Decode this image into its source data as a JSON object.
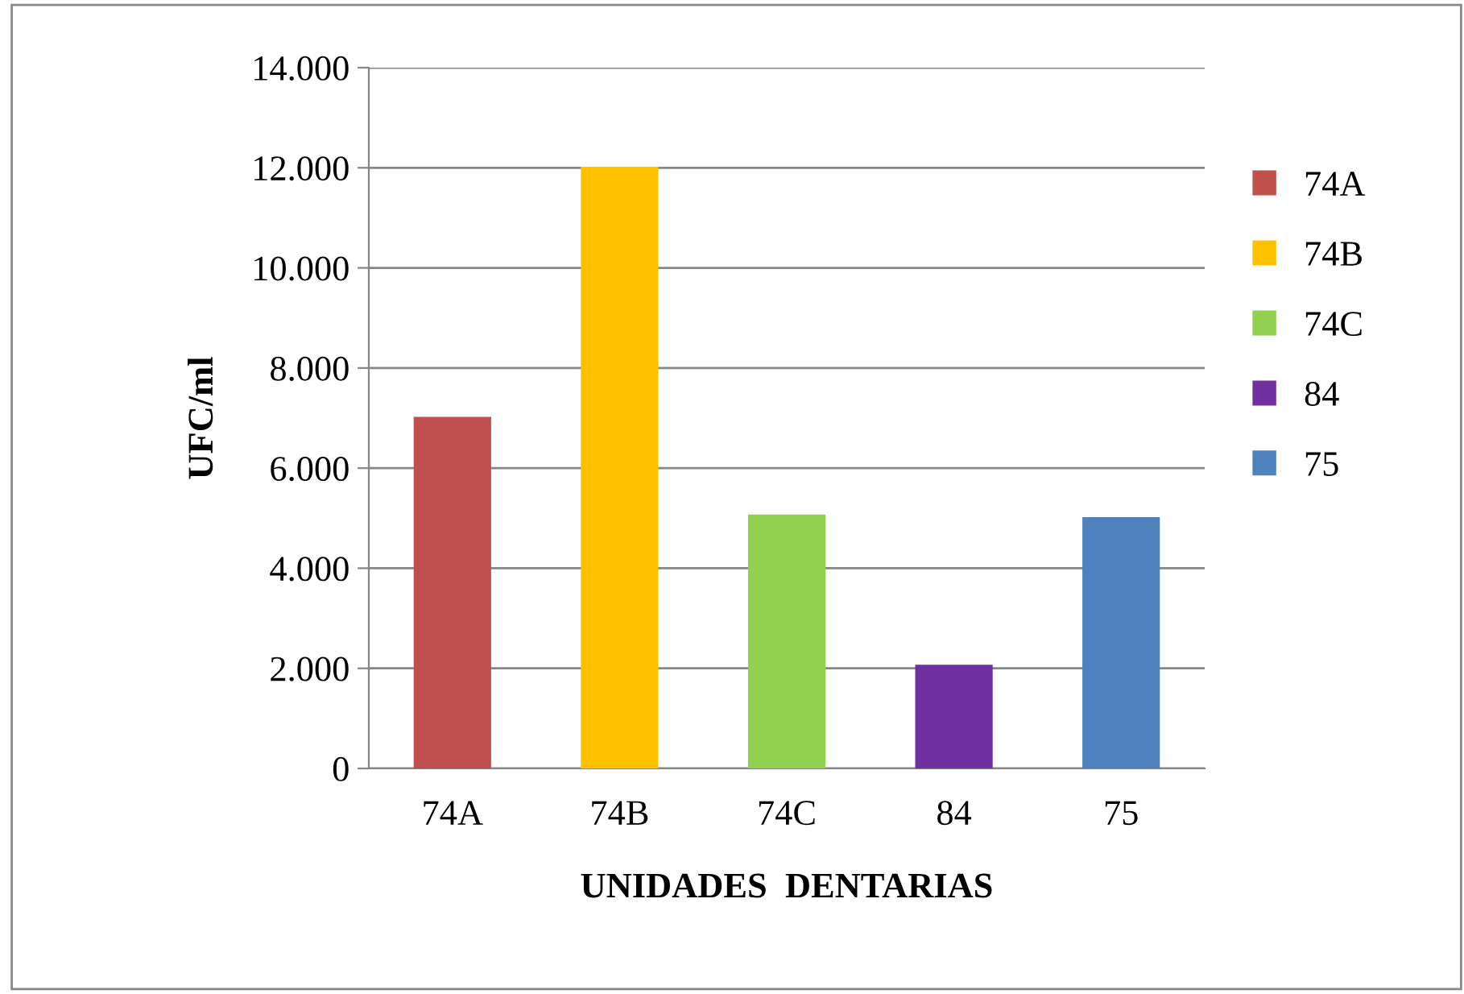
{
  "chart_data": {
    "type": "bar",
    "xlabel": "UNIDADES  DENTARIAS",
    "ylabel": "UFC/ml",
    "categories": [
      "74A",
      "74B",
      "74C",
      "84",
      "75"
    ],
    "series": [
      {
        "name": "74A",
        "color": "#c0504d",
        "values": [
          7000,
          null,
          null,
          null,
          null
        ]
      },
      {
        "name": "74B",
        "color": "#ffc000",
        "values": [
          null,
          12000,
          null,
          null,
          null
        ]
      },
      {
        "name": "74C",
        "color": "#92d050",
        "values": [
          null,
          null,
          5050,
          null,
          null
        ]
      },
      {
        "name": "84",
        "color": "#7030a0",
        "values": [
          null,
          null,
          null,
          2050,
          null
        ]
      },
      {
        "name": "75",
        "color": "#4f81bd",
        "values": [
          null,
          null,
          null,
          null,
          5000
        ]
      }
    ],
    "ylim": [
      0,
      14000
    ],
    "yticks": [
      0,
      {
        "value": 2000,
        "label": "2.000"
      },
      {
        "value": 4000,
        "label": "4.000"
      },
      {
        "value": 6000,
        "label": "6.000"
      },
      {
        "value": 8000,
        "label": "8.000"
      },
      {
        "value": 10000,
        "label": "10.000"
      },
      {
        "value": 12000,
        "label": "12.000"
      },
      {
        "value": 14000,
        "label": "14.000"
      }
    ],
    "grid": "y",
    "legend": "right"
  }
}
